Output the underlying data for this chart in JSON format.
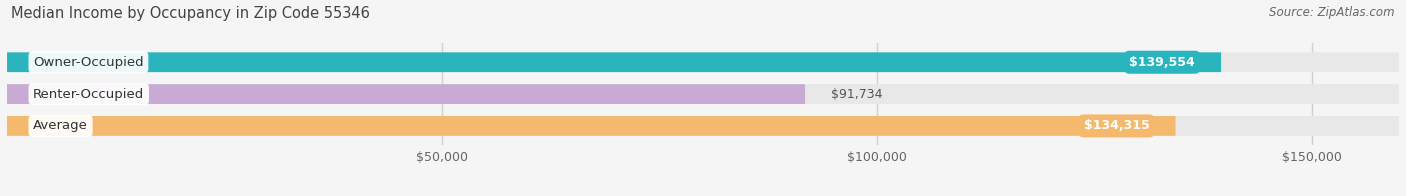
{
  "title": "Median Income by Occupancy in Zip Code 55346",
  "source": "Source: ZipAtlas.com",
  "categories": [
    "Owner-Occupied",
    "Renter-Occupied",
    "Average"
  ],
  "values": [
    139554,
    91734,
    134315
  ],
  "labels": [
    "$139,554",
    "$91,734",
    "$134,315"
  ],
  "bar_colors": [
    "#2ab5be",
    "#c9aad4",
    "#f5b96e"
  ],
  "bar_bg_color": "#e8e8e8",
  "xlim": [
    0,
    160000
  ],
  "xticks": [
    50000,
    100000,
    150000
  ],
  "xtick_labels": [
    "$50,000",
    "$100,000",
    "$150,000"
  ],
  "title_fontsize": 10.5,
  "source_fontsize": 8.5,
  "label_fontsize": 9,
  "cat_fontsize": 9.5,
  "tick_fontsize": 9,
  "bar_height": 0.62,
  "bg_color": "#f5f5f5",
  "grid_color": "#d0d0d0",
  "label_inside_color": "white",
  "label_outside_color": "#555555"
}
